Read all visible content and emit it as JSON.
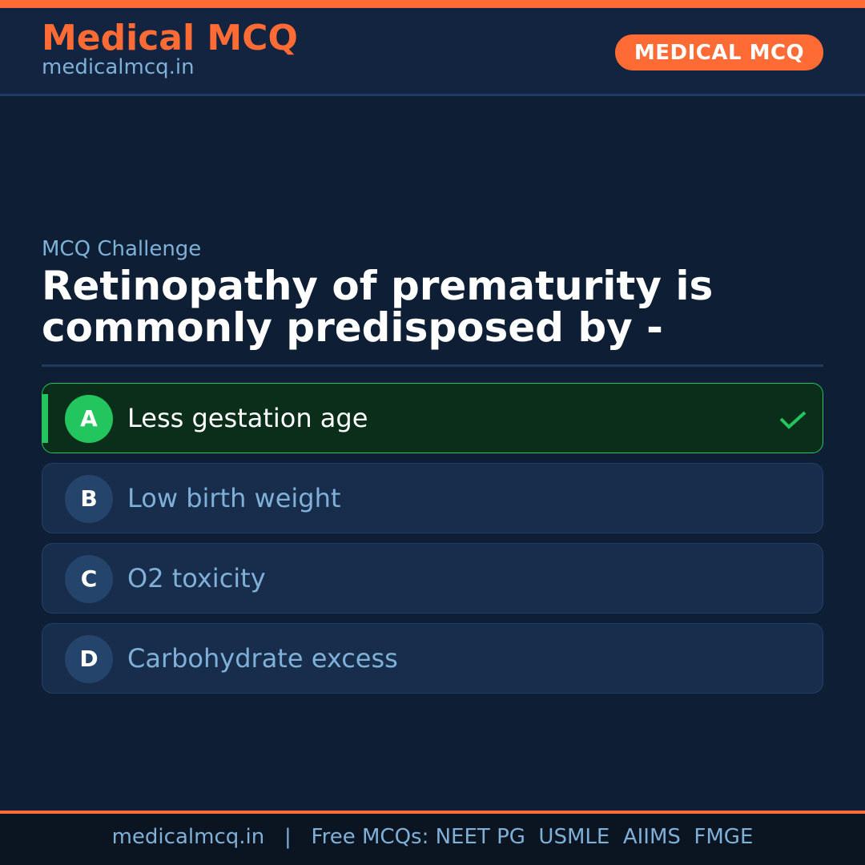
{
  "header": {
    "brand": "Medical MCQ",
    "site": "medicalmcq.in",
    "badge": "MEDICAL MCQ"
  },
  "question": {
    "kicker": "MCQ Challenge",
    "text": "Retinopathy of prematurity is commonly predisposed by -"
  },
  "options": [
    {
      "letter": "A",
      "text": "Less gestation age",
      "correct": true
    },
    {
      "letter": "B",
      "text": "Low birth weight",
      "correct": false
    },
    {
      "letter": "C",
      "text": "O2 toxicity",
      "correct": false
    },
    {
      "letter": "D",
      "text": "Carbohydrate excess",
      "correct": false
    }
  ],
  "footer": {
    "text": "medicalmcq.in   |   Free MCQs: NEET PG  USMLE  AIIMS  FMGE"
  },
  "colors": {
    "accent": "#ff6b35",
    "correct": "#22c55e",
    "background": "#0e1f35"
  }
}
